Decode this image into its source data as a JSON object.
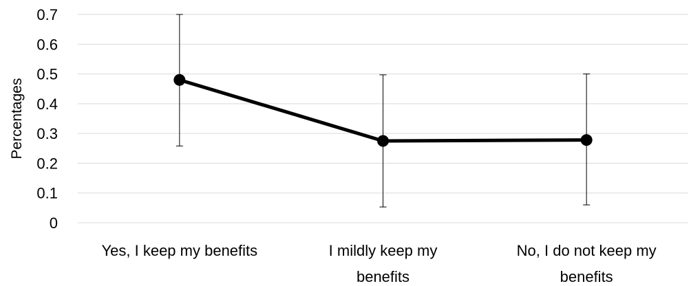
{
  "chart_data": {
    "type": "line",
    "title": "",
    "xlabel": "",
    "ylabel": "Percentages",
    "ylim": [
      0,
      0.7
    ],
    "yticks": [
      "0",
      "0.1",
      "0.2",
      "0.3",
      "0.4",
      "0.5",
      "0.6",
      "0.7"
    ],
    "grid": true,
    "categories": [
      [
        "Yes, I  keep my benefits"
      ],
      [
        "I mildly keep my",
        "benefits"
      ],
      [
        "No, I do not keep my",
        "benefits"
      ]
    ],
    "series": [
      {
        "values": [
          0.48,
          0.275,
          0.278
        ],
        "error_low": [
          0.258,
          0.053,
          0.06
        ],
        "error_high": [
          0.7,
          0.497,
          0.5
        ],
        "color": "#000000"
      }
    ]
  }
}
